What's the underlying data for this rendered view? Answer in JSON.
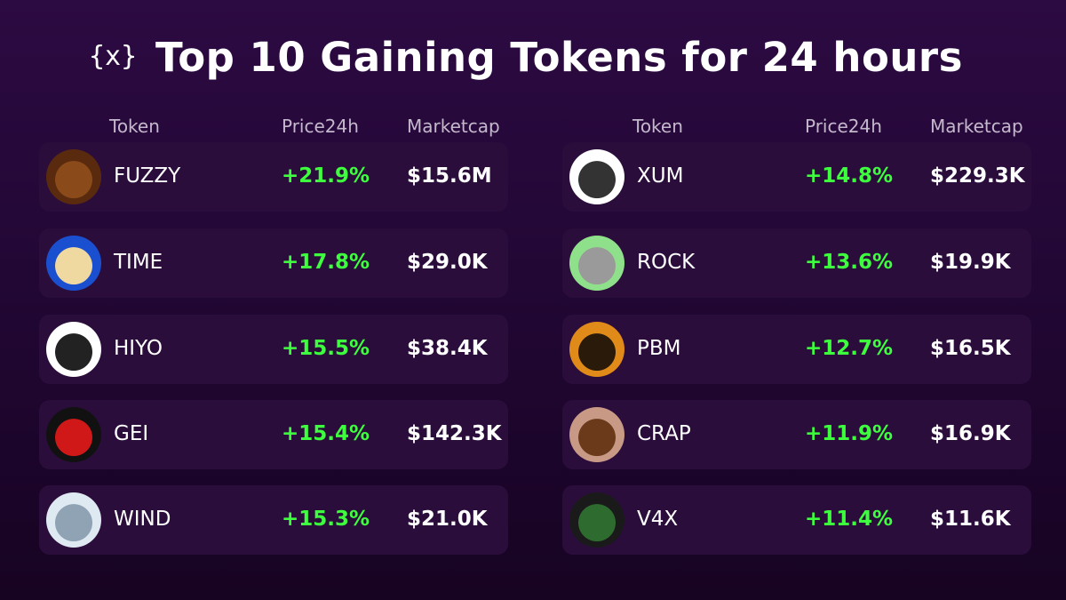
{
  "header": {
    "logo": "{x}",
    "title": "Top 10 Gaining Tokens for 24 hours"
  },
  "tables": [
    {
      "columns": [
        "Token",
        "Price24h",
        "Marketcap"
      ],
      "rows": [
        [
          "FUZZY",
          "+21.9%",
          "$15.6M"
        ],
        [
          "TIME",
          "+17.8%",
          "$29.0K"
        ],
        [
          "HIYO",
          "+15.5%",
          "$38.4K"
        ],
        [
          "GEI",
          "+15.4%",
          "$142.3K"
        ],
        [
          "WIND",
          "+15.3%",
          "$21.0K"
        ]
      ]
    },
    {
      "columns": [
        "Token",
        "Price24h",
        "Marketcap"
      ],
      "rows": [
        [
          "XUM",
          "+14.8%",
          "$229.3K"
        ],
        [
          "ROCK",
          "+13.6%",
          "$19.9K"
        ],
        [
          "PBM",
          "+12.7%",
          "$16.5K"
        ],
        [
          "CRAP",
          "+11.9%",
          "$16.9K"
        ],
        [
          "V4X",
          "+11.4%",
          "$11.6K"
        ]
      ]
    }
  ]
}
